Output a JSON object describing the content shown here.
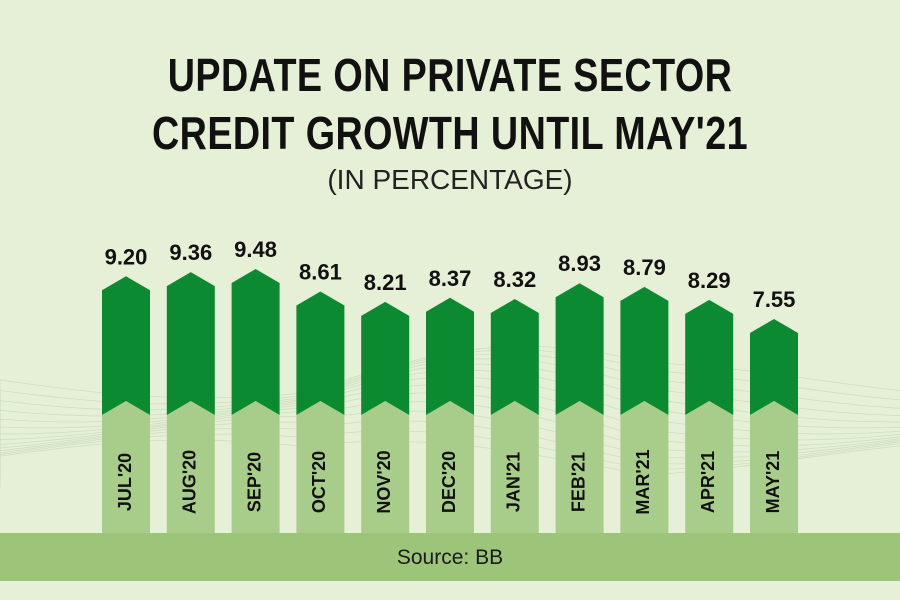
{
  "title_line1": "UPDATE ON PRIVATE SECTOR",
  "title_line2": "CREDIT GROWTH UNTIL MAY'21",
  "subtitle": "(IN PERCENTAGE)",
  "source": "Source: BB",
  "colors": {
    "background": "#e6f0d6",
    "bar_top": "#0c8a32",
    "bar_bottom": "#a8cd8b",
    "source_bar": "#9cc57a",
    "text": "#111111"
  },
  "chart_data": {
    "type": "bar",
    "title": "UPDATE ON PRIVATE SECTOR CREDIT GROWTH UNTIL MAY'21",
    "subtitle": "(IN PERCENTAGE)",
    "categories": [
      "JUL'20",
      "AUG'20",
      "SEP'20",
      "OCT'20",
      "NOV'20",
      "DEC'20",
      "JAN'21",
      "FEB'21",
      "MAR'21",
      "APR'21",
      "MAY'21"
    ],
    "values": [
      9.2,
      9.36,
      9.48,
      8.61,
      8.21,
      8.37,
      8.32,
      8.93,
      8.79,
      8.29,
      7.55
    ],
    "value_labels": [
      "9.20",
      "9.36",
      "9.48",
      "8.61",
      "8.21",
      "8.37",
      "8.32",
      "8.93",
      "8.79",
      "8.29",
      "7.55"
    ],
    "xlabel": "",
    "ylabel": "",
    "grid": false,
    "legend": "none"
  }
}
